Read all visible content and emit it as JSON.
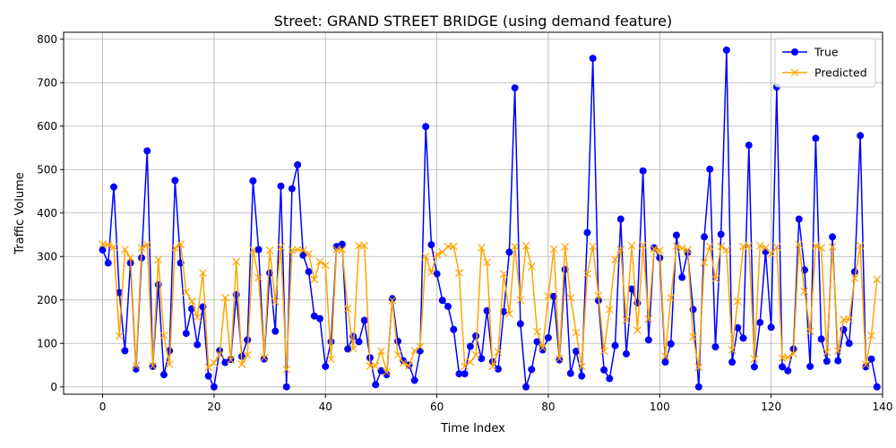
{
  "chart_data": {
    "type": "line",
    "title": "Street: GRAND STREET BRIDGE (using demand feature)",
    "xlabel": "Time Index",
    "ylabel": "Traffic Volume",
    "xlim": [
      -7,
      140
    ],
    "ylim": [
      -17,
      816
    ],
    "xticks": [
      0,
      20,
      40,
      60,
      80,
      100,
      120,
      140
    ],
    "yticks": [
      0,
      100,
      200,
      300,
      400,
      500,
      600,
      700,
      800
    ],
    "grid": true,
    "legend": "top-right",
    "series": [
      {
        "name": "True",
        "color": "#0000ff",
        "marker": "circle",
        "values": [
          315,
          285,
          460,
          217,
          83,
          285,
          41,
          297,
          543,
          47,
          235,
          28,
          83,
          475,
          285,
          123,
          180,
          97,
          184,
          25,
          0,
          83,
          56,
          63,
          212,
          70,
          108,
          474,
          316,
          64,
          262,
          128,
          462,
          0,
          456,
          511,
          303,
          265,
          163,
          157,
          47,
          104,
          323,
          328,
          87,
          116,
          104,
          153,
          67,
          5,
          37,
          28,
          203,
          105,
          60,
          50,
          15,
          83,
          599,
          327,
          260,
          199,
          185,
          132,
          30,
          30,
          93,
          117,
          65,
          175,
          58,
          41,
          173,
          310,
          688,
          145,
          0,
          40,
          104,
          85,
          113,
          208,
          62,
          270,
          31,
          82,
          25,
          355,
          756,
          199,
          39,
          19,
          95,
          386,
          76,
          225,
          193,
          497,
          108,
          320,
          297,
          57,
          99,
          349,
          252,
          309,
          178,
          0,
          345,
          501,
          92,
          351,
          775,
          57,
          136,
          112,
          556,
          46,
          148,
          311,
          137,
          690,
          46,
          37,
          87,
          386,
          269,
          47,
          572,
          110,
          59,
          345,
          60,
          132,
          100,
          265,
          578,
          46,
          64,
          0
        ]
      },
      {
        "name": "Predicted",
        "color": "#ffa500",
        "marker": "x",
        "values": [
          328,
          327,
          322,
          117,
          316,
          297,
          48,
          320,
          327,
          48,
          293,
          118,
          52,
          320,
          328,
          218,
          197,
          160,
          262,
          45,
          55,
          74,
          205,
          62,
          288,
          52,
          73,
          315,
          251,
          67,
          314,
          196,
          322,
          40,
          314,
          316,
          314,
          306,
          247,
          288,
          280,
          64,
          316,
          316,
          180,
          88,
          325,
          325,
          48,
          48,
          82,
          34,
          199,
          74,
          55,
          48,
          83,
          92,
          300,
          263,
          304,
          310,
          323,
          323,
          262,
          47,
          57,
          73,
          320,
          286,
          47,
          80,
          260,
          168,
          323,
          200,
          325,
          277,
          127,
          90,
          209,
          317,
          65,
          322,
          205,
          125,
          47,
          260,
          323,
          210,
          82,
          178,
          293,
          316,
          154,
          325,
          130,
          326,
          156,
          318,
          314,
          70,
          205,
          324,
          319,
          315,
          115,
          45,
          286,
          323,
          248,
          323,
          315,
          85,
          197,
          323,
          325,
          64,
          325,
          320,
          306,
          322,
          66,
          68,
          76,
          328,
          220,
          128,
          325,
          320,
          80,
          322,
          83,
          155,
          155,
          250,
          325,
          51,
          118,
          247
        ]
      }
    ]
  }
}
